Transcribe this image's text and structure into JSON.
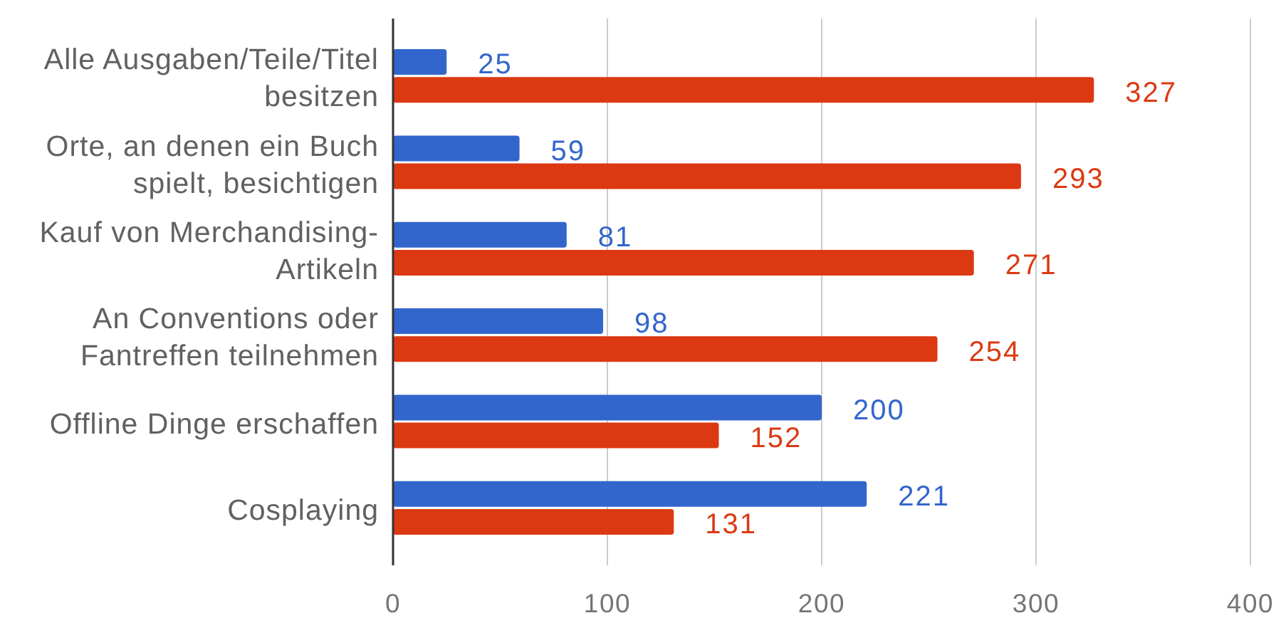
{
  "chart_data": {
    "type": "bar",
    "orientation": "horizontal",
    "categories": [
      "Alle Ausgaben/Teile/Titel besitzen",
      "Orte, an denen ein Buch spielt, besichtigen",
      "Kauf von Merchandising-Artikeln",
      "An Conventions oder Fantreffen teilnehmen",
      "Offline Dinge erschaffen",
      "Cosplaying"
    ],
    "series": [
      {
        "color": "#3366cc",
        "values": [
          25,
          59,
          81,
          98,
          200,
          221
        ]
      },
      {
        "color": "#dc3912",
        "values": [
          327,
          293,
          271,
          254,
          152,
          131
        ]
      }
    ],
    "xlim": [
      0,
      400
    ],
    "xticks": [
      0,
      100,
      200,
      300,
      400
    ],
    "grid": "x",
    "data_labels": true
  }
}
